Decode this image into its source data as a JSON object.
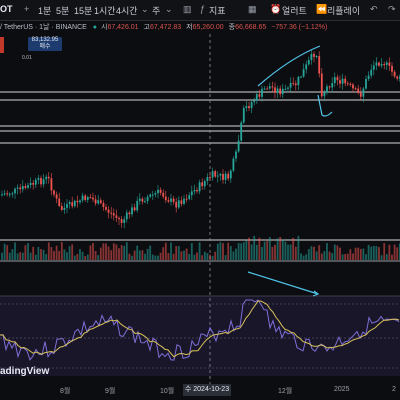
{
  "toolbar": {
    "symbol_prefix": "OT",
    "intervals": [
      "1분",
      "5분",
      "15분",
      "1시간",
      "4시간"
    ],
    "interval_more": "주",
    "indicators_label": "지표",
    "alert_label": "얼러트",
    "replay_label": "리플레이",
    "icons": [
      "add-icon",
      "chevron-down-icon",
      "candles-icon",
      "indicators-icon",
      "layout-icon",
      "alert-icon",
      "replay-icon",
      "undo-icon",
      "redo-icon"
    ]
  },
  "legend": {
    "pair": "/ TetherUS · 1날 · BINANCE",
    "open_label": "시",
    "open": "67,426.01",
    "high_label": "고",
    "high": "67,472.83",
    "low_label": "저",
    "low": "65,260.00",
    "close_label": "종",
    "close": "66,668.65",
    "change": "−757.36 (−1.12%)"
  },
  "price_box": {
    "value": "83,132.95",
    "sub": "매수"
  },
  "volume_value": "0.01",
  "bottom": {
    "logo": "adingView",
    "x_labels": [
      "8월",
      "9월",
      "10월",
      "12월",
      "2025",
      "2"
    ],
    "highlight_date": "수 2024-10-23"
  },
  "colors": {
    "up": "#26a69a",
    "down": "#ef5350",
    "trendline": "#4fc3e8",
    "rsi_line": "#7e6fd8",
    "rsi_ma": "#d7c25a",
    "rsi_bg": "#1a1629",
    "price_box": "#1d3b6e"
  }
}
